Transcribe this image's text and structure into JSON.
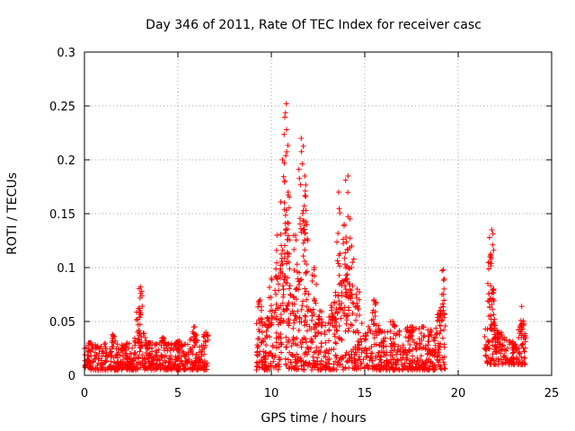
{
  "chart_data": {
    "type": "scatter",
    "title": "Day 346 of 2011, Rate Of TEC Index for receiver casc",
    "xlabel": "GPS time / hours",
    "ylabel": "ROTI / TECUs",
    "xlim": [
      0,
      25
    ],
    "ylim": [
      0,
      0.3
    ],
    "xticks": [
      0,
      5,
      10,
      15,
      20,
      25
    ],
    "yticks": [
      0,
      0.05,
      0.1,
      0.15,
      0.2,
      0.25,
      0.3
    ],
    "ytick_labels": [
      "0",
      "0.05",
      "0.1",
      "0.15",
      "0.2",
      "0.25",
      "0.3"
    ],
    "grid": true,
    "marker": "+",
    "color": "#ff0000",
    "series": [
      {
        "name": "ROTI",
        "segments": [
          {
            "x_start": 0.0,
            "x_end": 6.6,
            "typical": [
              0.005,
              0.03
            ],
            "peaks": [
              [
                0.3,
                0.03
              ],
              [
                1.5,
                0.038
              ],
              [
                2.9,
                0.062
              ],
              [
                3.0,
                0.082
              ],
              [
                3.5,
                0.03
              ],
              [
                4.2,
                0.035
              ],
              [
                5.0,
                0.032
              ],
              [
                5.9,
                0.045
              ],
              [
                6.5,
                0.04
              ]
            ]
          },
          {
            "x_start": 9.2,
            "x_end": 19.3,
            "typical": [
              0.005,
              0.045
            ],
            "peaks": [
              [
                9.4,
                0.07
              ],
              [
                10.0,
                0.09
              ],
              [
                10.3,
                0.13
              ],
              [
                10.6,
                0.2
              ],
              [
                10.8,
                0.252
              ],
              [
                10.9,
                0.17
              ],
              [
                11.3,
                0.13
              ],
              [
                11.6,
                0.22
              ],
              [
                11.8,
                0.185
              ],
              [
                11.9,
                0.14
              ],
              [
                12.3,
                0.1
              ],
              [
                12.6,
                0.06
              ],
              [
                13.2,
                0.065
              ],
              [
                13.6,
                0.17
              ],
              [
                13.9,
                0.14
              ],
              [
                14.1,
                0.185
              ],
              [
                14.3,
                0.12
              ],
              [
                14.6,
                0.08
              ],
              [
                15.5,
                0.07
              ],
              [
                16.5,
                0.05
              ],
              [
                17.5,
                0.04
              ],
              [
                18.5,
                0.02
              ],
              [
                19.0,
                0.06
              ],
              [
                19.2,
                0.098
              ]
            ]
          },
          {
            "x_start": 21.4,
            "x_end": 23.6,
            "typical": [
              0.01,
              0.035
            ],
            "peaks": [
              [
                21.7,
                0.11
              ],
              [
                21.8,
                0.135
              ],
              [
                21.9,
                0.08
              ],
              [
                22.2,
                0.04
              ],
              [
                23.4,
                0.064
              ],
              [
                23.5,
                0.035
              ]
            ]
          }
        ]
      }
    ]
  }
}
